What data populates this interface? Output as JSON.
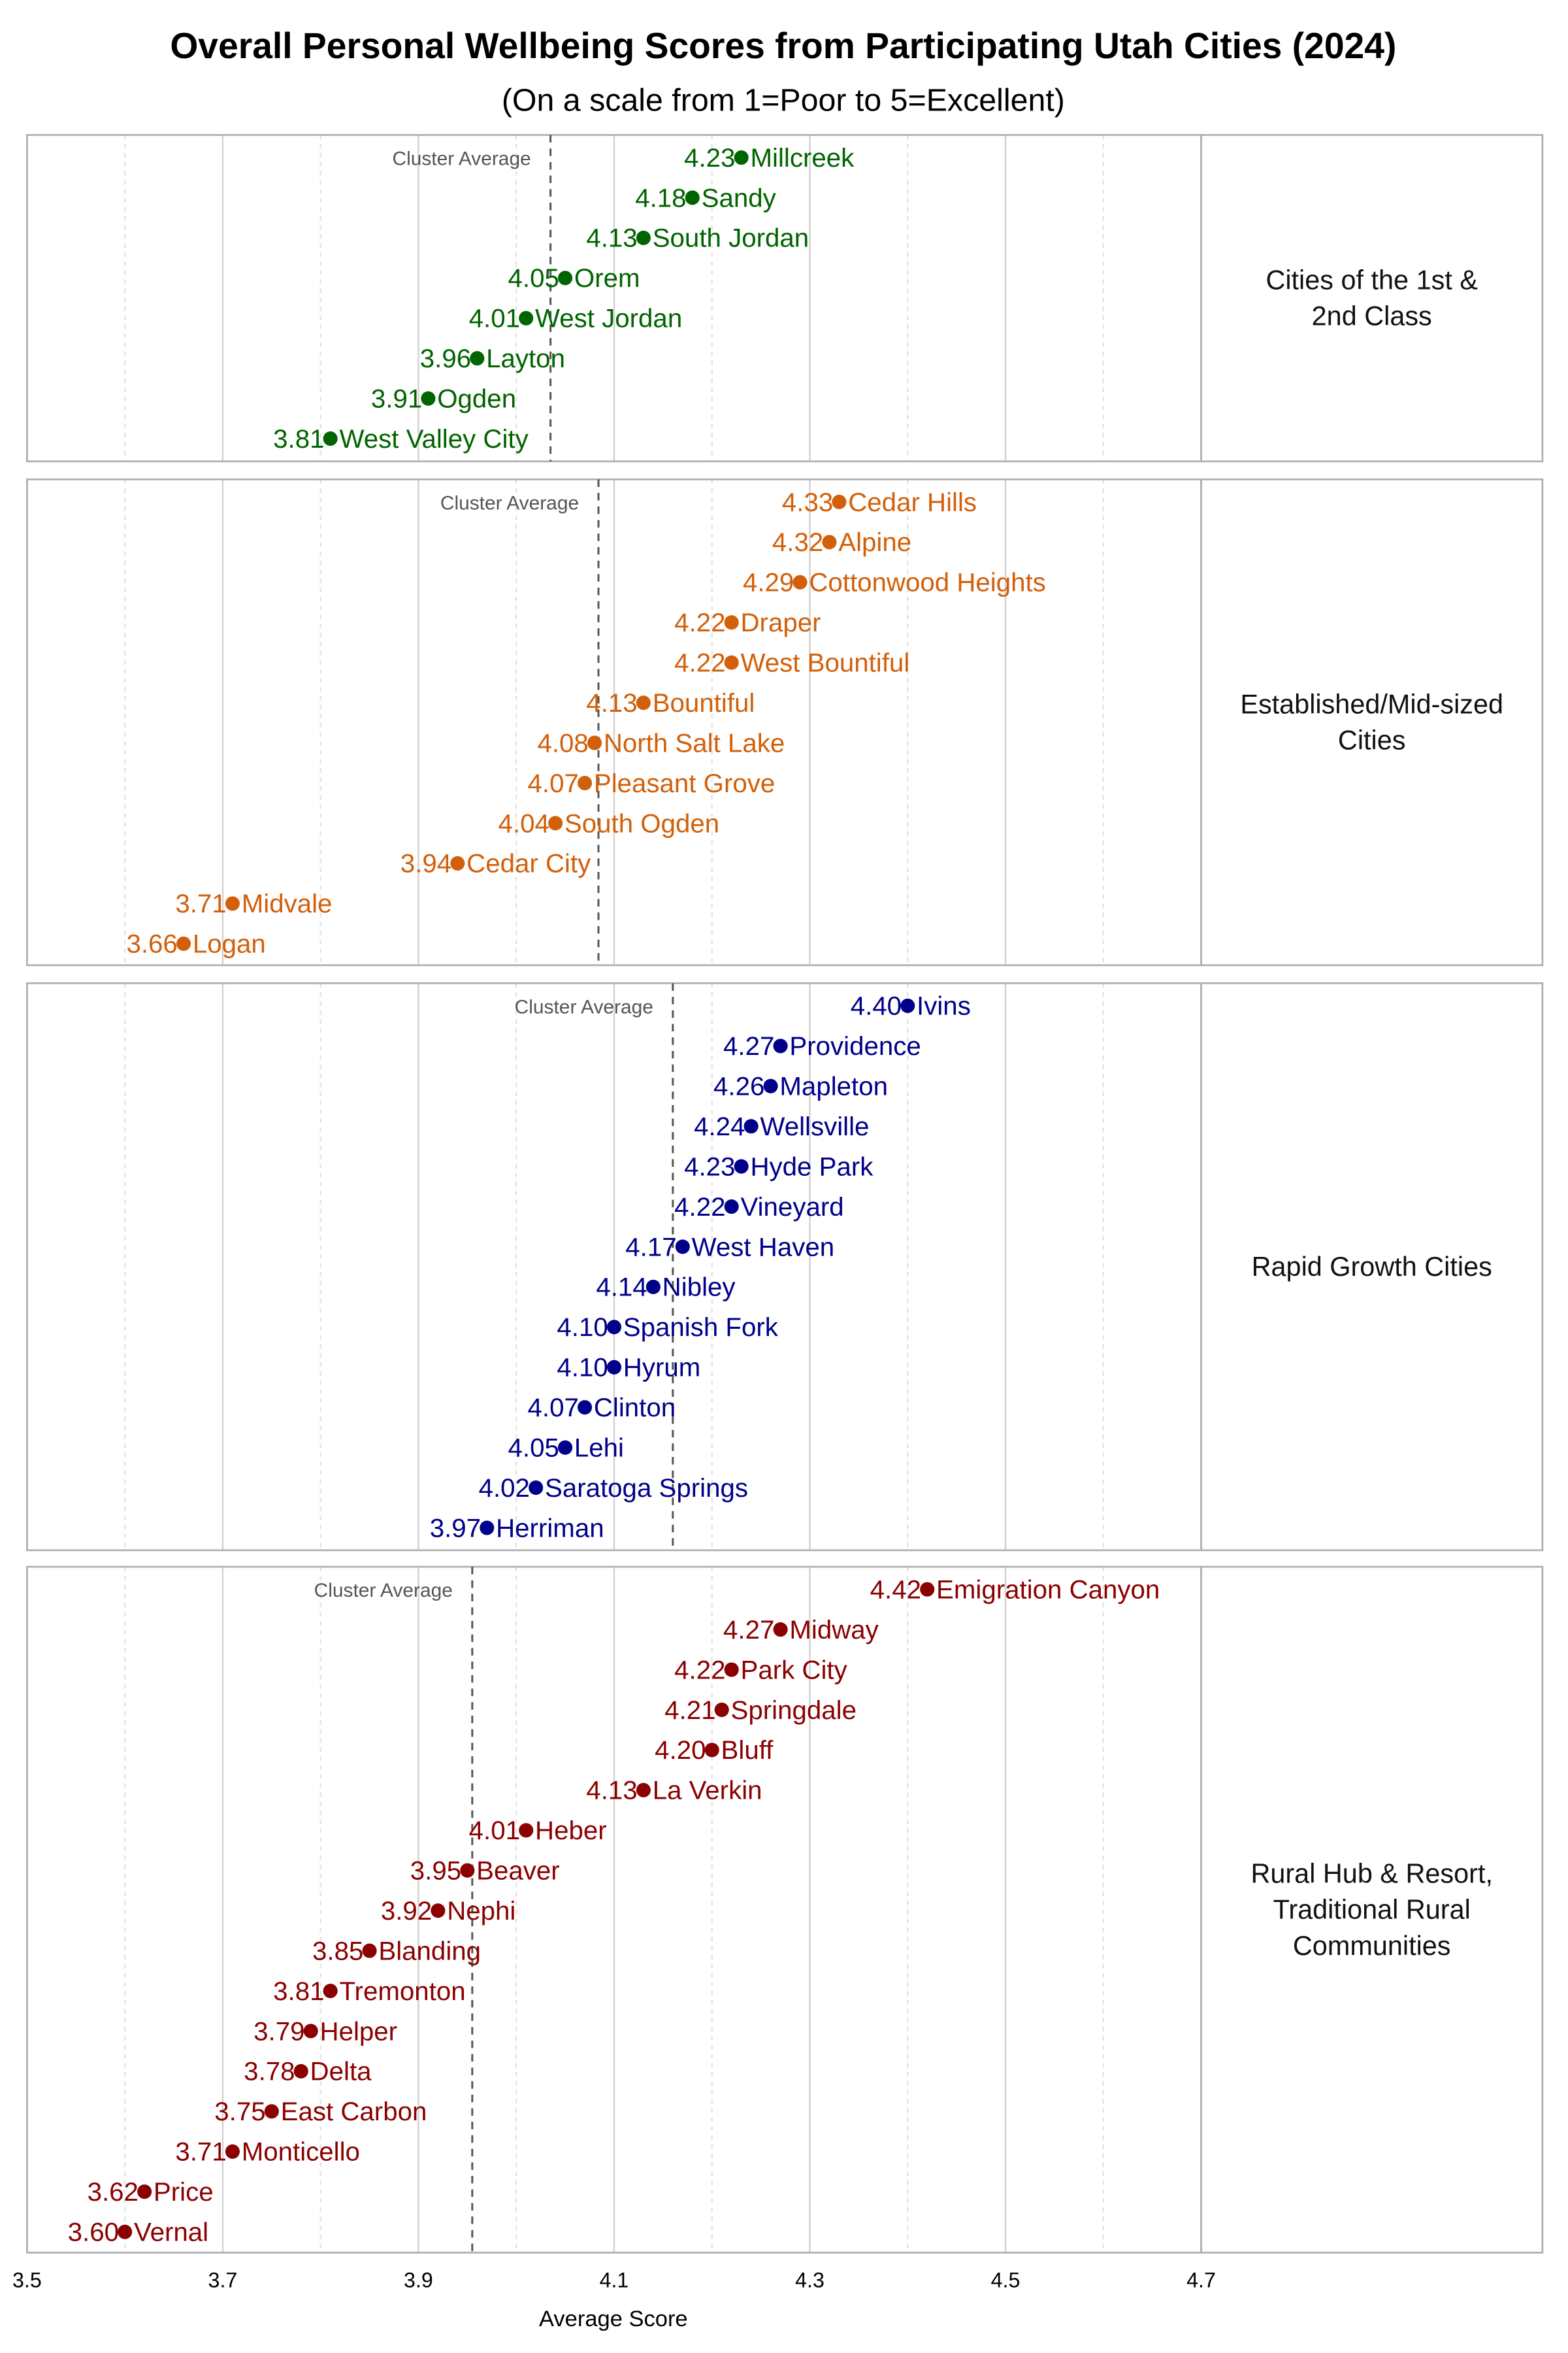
{
  "chart_data": {
    "type": "scatter",
    "title": "Overall Personal Wellbeing Scores from Participating Utah Cities (2024)",
    "subtitle": "(On a scale from 1=Poor to 5=Excellent)",
    "xlabel": "Average Score",
    "xlim": [
      3.5,
      4.85
    ],
    "xticks": [
      "3.5",
      "3.7",
      "3.9",
      "4.1",
      "4.3",
      "4.5",
      "4.7"
    ],
    "grid": true,
    "cluster_average_label": "Cluster Average",
    "panels": [
      {
        "name_lines": [
          "Cities of the 1st &",
          "2nd Class"
        ],
        "color": "#006400",
        "cluster_average": 4.035,
        "cities": [
          "Millcreek",
          "Sandy",
          "South Jordan",
          "Orem",
          "West Jordan",
          "Layton",
          "Ogden",
          "West Valley City"
        ],
        "labels": [
          "4.23",
          "4.18",
          "4.13",
          "4.05",
          "4.01",
          "3.96",
          "3.91",
          "3.81"
        ],
        "values": [
          4.23,
          4.18,
          4.13,
          4.05,
          4.01,
          3.96,
          3.91,
          3.81
        ]
      },
      {
        "name_lines": [
          "Established/Mid-sized",
          "Cities"
        ],
        "color": "#d2600a",
        "cluster_average": 4.084,
        "cities": [
          "Cedar Hills",
          "Alpine",
          "Cottonwood Heights",
          "Draper",
          "West Bountiful",
          "Bountiful",
          "North Salt Lake",
          "Pleasant Grove",
          "South Ogden",
          "Cedar City",
          "Midvale",
          "Logan"
        ],
        "labels": [
          "4.33",
          "4.32",
          "4.29",
          "4.22",
          "4.22",
          "4.13",
          "4.08",
          "4.07",
          "4.04",
          "3.94",
          "3.71",
          "3.66"
        ],
        "values": [
          4.33,
          4.32,
          4.29,
          4.22,
          4.22,
          4.13,
          4.08,
          4.07,
          4.04,
          3.94,
          3.71,
          3.66
        ]
      },
      {
        "name_lines": [
          "Rapid Growth Cities"
        ],
        "color": "#00008b",
        "cluster_average": 4.16,
        "cities": [
          "Ivins",
          "Providence",
          "Mapleton",
          "Wellsville",
          "Hyde Park",
          "Vineyard",
          "West Haven",
          "Nibley",
          "Spanish Fork",
          "Hyrum",
          "Clinton",
          "Lehi",
          "Saratoga Springs",
          "Herriman"
        ],
        "labels": [
          "4.40",
          "4.27",
          "4.26",
          "4.24",
          "4.23",
          "4.22",
          "4.17",
          "4.14",
          "4.10",
          "4.10",
          "4.07",
          "4.05",
          "4.02",
          "3.97"
        ],
        "values": [
          4.4,
          4.27,
          4.26,
          4.24,
          4.23,
          4.22,
          4.17,
          4.14,
          4.1,
          4.1,
          4.07,
          4.05,
          4.02,
          3.97
        ]
      },
      {
        "name_lines": [
          "Rural Hub & Resort,",
          "Traditional Rural",
          "Communities"
        ],
        "color": "#8b0000",
        "cluster_average": 3.955,
        "cities": [
          "Emigration Canyon",
          "Midway",
          "Park City",
          "Springdale",
          "Bluff",
          "La Verkin",
          "Heber",
          "Beaver",
          "Nephi",
          "Blanding",
          "Tremonton",
          "Helper",
          "Delta",
          "East Carbon",
          "Monticello",
          "Price",
          "Vernal"
        ],
        "labels": [
          "4.42",
          "4.27",
          "4.22",
          "4.21",
          "4.20",
          "4.13",
          "4.01",
          "3.95",
          "3.92",
          "3.85",
          "3.81",
          "3.79",
          "3.78",
          "3.75",
          "3.71",
          "3.62",
          "3.60"
        ],
        "values": [
          4.42,
          4.27,
          4.22,
          4.21,
          4.2,
          4.13,
          4.01,
          3.95,
          3.92,
          3.85,
          3.81,
          3.79,
          3.78,
          3.75,
          3.71,
          3.62,
          3.6
        ]
      }
    ]
  }
}
